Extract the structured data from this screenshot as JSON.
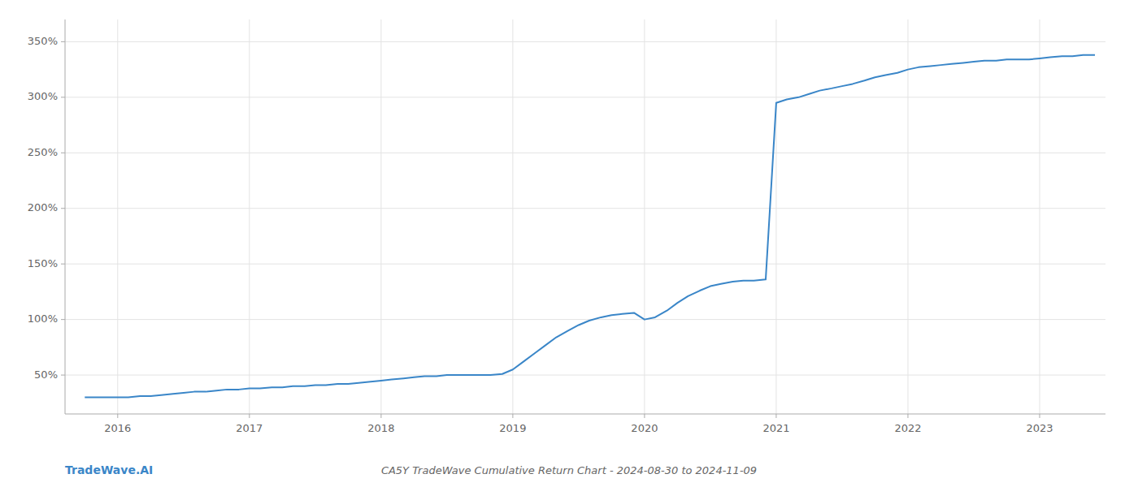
{
  "chart_data": {
    "type": "line",
    "title": "CA5Y TradeWave Cumulative Return Chart - 2024-08-30 to 2024-11-09",
    "annotations": [
      "TradeWave.AI"
    ],
    "color": "#3a86c8",
    "x": [
      2015.75,
      2016.0,
      2016.08,
      2016.17,
      2016.25,
      2016.33,
      2016.42,
      2016.5,
      2016.58,
      2016.67,
      2016.75,
      2016.83,
      2016.92,
      2017.0,
      2017.08,
      2017.17,
      2017.25,
      2017.33,
      2017.42,
      2017.5,
      2017.58,
      2017.67,
      2017.75,
      2017.83,
      2017.92,
      2018.0,
      2018.08,
      2018.17,
      2018.25,
      2018.33,
      2018.42,
      2018.5,
      2018.58,
      2018.67,
      2018.75,
      2018.83,
      2018.92,
      2019.0,
      2019.08,
      2019.17,
      2019.25,
      2019.33,
      2019.42,
      2019.5,
      2019.58,
      2019.67,
      2019.75,
      2019.83,
      2019.92,
      2020.0,
      2020.08,
      2020.17,
      2020.25,
      2020.33,
      2020.42,
      2020.5,
      2020.58,
      2020.67,
      2020.75,
      2020.83,
      2020.92,
      2021.0,
      2021.08,
      2021.17,
      2021.25,
      2021.33,
      2021.42,
      2021.5,
      2021.58,
      2021.67,
      2021.75,
      2021.83,
      2021.92,
      2022.0,
      2022.08,
      2022.17,
      2022.25,
      2022.33,
      2022.42,
      2022.5,
      2022.58,
      2022.67,
      2022.75,
      2022.83,
      2022.92,
      2023.0,
      2023.08,
      2023.17,
      2023.25,
      2023.33,
      2023.42
    ],
    "values": [
      30,
      30,
      30,
      31,
      31,
      32,
      33,
      34,
      35,
      35,
      36,
      37,
      37,
      38,
      38,
      39,
      39,
      40,
      40,
      41,
      41,
      42,
      42,
      43,
      44,
      45,
      46,
      47,
      48,
      49,
      49,
      50,
      50,
      50,
      50,
      50,
      51,
      55,
      62,
      70,
      77,
      84,
      90,
      95,
      99,
      102,
      104,
      105,
      106,
      100,
      102,
      108,
      115,
      121,
      126,
      130,
      132,
      134,
      135,
      135,
      136,
      295,
      298,
      300,
      303,
      306,
      308,
      310,
      312,
      315,
      318,
      320,
      322,
      325,
      327,
      328,
      329,
      330,
      331,
      332,
      333,
      333,
      334,
      334,
      334,
      335,
      336,
      337,
      337,
      338,
      338
    ],
    "xlim": [
      2015.6,
      2023.5
    ],
    "xticks": [
      2016,
      2017,
      2018,
      2019,
      2020,
      2021,
      2022,
      2023
    ],
    "ylim": [
      15,
      370
    ],
    "yticks": [
      {
        "value": 50,
        "label": "50%"
      },
      {
        "value": 100,
        "label": "100%"
      },
      {
        "value": 150,
        "label": "150%"
      },
      {
        "value": 200,
        "label": "200%"
      },
      {
        "value": 250,
        "label": "250%"
      },
      {
        "value": 300,
        "label": "300%"
      },
      {
        "value": 350,
        "label": "350%"
      }
    ],
    "grid": true
  }
}
